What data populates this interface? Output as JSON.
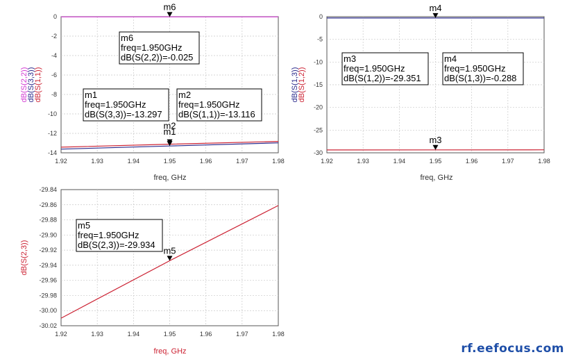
{
  "watermark": "rf.eefocus.com",
  "chart_data": [
    {
      "type": "line",
      "xlabel": "freq, GHz",
      "x_ticks": [
        "1.92",
        "1.93",
        "1.94",
        "1.95",
        "1.96",
        "1.97",
        "1.98"
      ],
      "xlim": [
        1.92,
        1.98
      ],
      "ylim": [
        -14,
        0
      ],
      "y_ticks": [
        "0",
        "-2",
        "-4",
        "-6",
        "-8",
        "-10",
        "-12",
        "-14"
      ],
      "ylabel_parts": [
        {
          "text": "dB(S(2,2))",
          "color": "#d23ad2"
        },
        {
          "text": "dB(S(3,3))",
          "color": "#2a2a8c"
        },
        {
          "text": "dB(S(1,1))",
          "color": "#cc2233"
        }
      ],
      "series": [
        {
          "name": "dB(S(2,2))",
          "color": "#d23ad2",
          "x": [
            1.92,
            1.98
          ],
          "y": [
            -0.025,
            -0.025
          ]
        },
        {
          "name": "dB(S(3,3))",
          "color": "#2a2a8c",
          "x": [
            1.92,
            1.95,
            1.98
          ],
          "y": [
            -13.62,
            -13.297,
            -12.98
          ]
        },
        {
          "name": "dB(S(1,1))",
          "color": "#cc2233",
          "x": [
            1.92,
            1.95,
            1.98
          ],
          "y": [
            -13.42,
            -13.116,
            -12.83
          ]
        }
      ],
      "markers": [
        {
          "label": "m6",
          "x": 1.95,
          "y": -0.025,
          "above": true
        },
        {
          "label": "m2",
          "x": 1.95,
          "y": -13.116,
          "above": true,
          "dy": -12
        },
        {
          "label": "m1",
          "x": 1.95,
          "y": -13.297,
          "above": true,
          "dy": -6
        },
        {
          "label": "m4",
          "x": 1.95,
          "y": -13.297,
          "hidden": true
        }
      ],
      "boxes": [
        {
          "lines": [
            "m6",
            "freq=1.950GHz",
            "dB(S(2,2))=-0.025"
          ]
        },
        {
          "lines": [
            "m1",
            "freq=1.950GHz",
            "dB(S(3,3))=-13.297"
          ]
        },
        {
          "lines": [
            "m2",
            "freq=1.950GHz",
            "dB(S(1,1))=-13.116"
          ]
        }
      ],
      "marker_labels_top": [
        "m2",
        "m1"
      ]
    },
    {
      "type": "line",
      "xlabel": "freq, GHz",
      "x_ticks": [
        "1.92",
        "1.93",
        "1.94",
        "1.95",
        "1.96",
        "1.97",
        "1.98"
      ],
      "xlim": [
        1.92,
        1.98
      ],
      "ylim": [
        -30,
        0
      ],
      "y_ticks": [
        "0",
        "-5",
        "-10",
        "-15",
        "-20",
        "-25",
        "-30"
      ],
      "ylabel_parts": [
        {
          "text": "dB(S(1,3))",
          "color": "#2a2a8c"
        },
        {
          "text": "dB(S(1,2))",
          "color": "#cc2233"
        }
      ],
      "series": [
        {
          "name": "dB(S(1,3))",
          "color": "#2a2a8c",
          "x": [
            1.92,
            1.98
          ],
          "y": [
            -0.29,
            -0.288
          ]
        },
        {
          "name": "dB(S(1,2))",
          "color": "#cc2233",
          "x": [
            1.92,
            1.95,
            1.98
          ],
          "y": [
            -29.37,
            -29.351,
            -29.34
          ]
        }
      ],
      "markers": [
        {
          "label": "m4",
          "x": 1.95,
          "y": -0.288,
          "above": true
        },
        {
          "label": "m3",
          "x": 1.95,
          "y": -29.351,
          "above": true
        }
      ],
      "boxes": [
        {
          "lines": [
            "m3",
            "freq=1.950GHz",
            "dB(S(1,2))=-29.351"
          ]
        },
        {
          "lines": [
            "m4",
            "freq=1.950GHz",
            "dB(S(1,3))=-0.288"
          ]
        }
      ]
    },
    {
      "type": "line",
      "xlabel": "freq, GHz",
      "xlabel_color": "#cc2233",
      "x_ticks": [
        "1.92",
        "1.93",
        "1.94",
        "1.95",
        "1.96",
        "1.97",
        "1.98"
      ],
      "xlim": [
        1.92,
        1.98
      ],
      "ylim": [
        -30.02,
        -29.84
      ],
      "y_ticks": [
        "-29.84",
        "-29.86",
        "-29.88",
        "-29.90",
        "-29.92",
        "-29.94",
        "-29.96",
        "-29.98",
        "-30.00",
        "-30.02"
      ],
      "ylabel_parts": [
        {
          "text": "dB(S(2,3))",
          "color": "#cc2233"
        }
      ],
      "series": [
        {
          "name": "dB(S(2,3))",
          "color": "#cc2233",
          "x": [
            1.92,
            1.95,
            1.98
          ],
          "y": [
            -30.01,
            -29.934,
            -29.861
          ]
        }
      ],
      "markers": [
        {
          "label": "m5",
          "x": 1.95,
          "y": -29.934,
          "above": true
        }
      ],
      "boxes": [
        {
          "lines": [
            "m5",
            "freq=1.950GHz",
            "dB(S(2,3))=-29.934"
          ]
        }
      ]
    }
  ]
}
